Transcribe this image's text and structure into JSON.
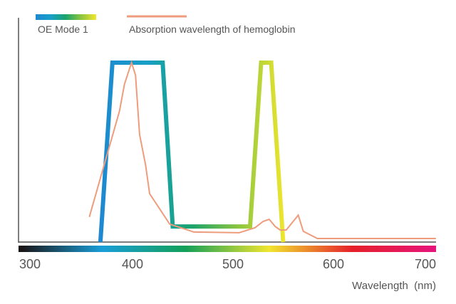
{
  "chart_data": {
    "type": "line",
    "title": "",
    "xlabel": "Wavelength  (nm)",
    "ylabel": "",
    "xlim": [
      300,
      710
    ],
    "ylim": [
      0,
      1
    ],
    "x_ticks": [
      "300",
      "400",
      "500",
      "600",
      "700"
    ],
    "grid": false,
    "legend_placement": "top-left",
    "colors": {
      "hemoglobin": "#EE9C7C",
      "oe_gradient": [
        "#1E88D0",
        "#17A0C8",
        "#1AA36A",
        "#8CC63F",
        "#F0E62E"
      ],
      "spectrum": [
        "#1a1111",
        "#1a9ed8",
        "#13a058",
        "#f1e52f",
        "#e5202a",
        "#e6147c"
      ],
      "axis": "#555555"
    },
    "series": [
      {
        "name": "OE Mode 1",
        "points": [
          [
            368,
            0
          ],
          [
            380,
            1
          ],
          [
            430,
            1
          ],
          [
            440,
            0.087
          ],
          [
            517,
            0.087
          ],
          [
            528,
            1
          ],
          [
            538,
            1
          ],
          [
            550,
            0
          ]
        ]
      },
      {
        "name": "Absorption wavelength of hemoglobin",
        "points": [
          [
            357,
            0.14
          ],
          [
            387,
            0.73
          ],
          [
            392,
            0.88
          ],
          [
            399,
            1.0
          ],
          [
            403,
            0.93
          ],
          [
            407,
            0.6
          ],
          [
            413,
            0.43
          ],
          [
            417,
            0.27
          ],
          [
            437,
            0.1
          ],
          [
            461,
            0.056
          ],
          [
            506,
            0.052
          ],
          [
            522,
            0.08
          ],
          [
            530,
            0.115
          ],
          [
            536,
            0.127
          ],
          [
            542,
            0.087
          ],
          [
            547,
            0.067
          ],
          [
            553,
            0.067
          ],
          [
            565,
            0.15
          ],
          [
            570,
            0.06
          ],
          [
            584,
            0.02
          ],
          [
            702,
            0.02
          ]
        ]
      }
    ]
  }
}
